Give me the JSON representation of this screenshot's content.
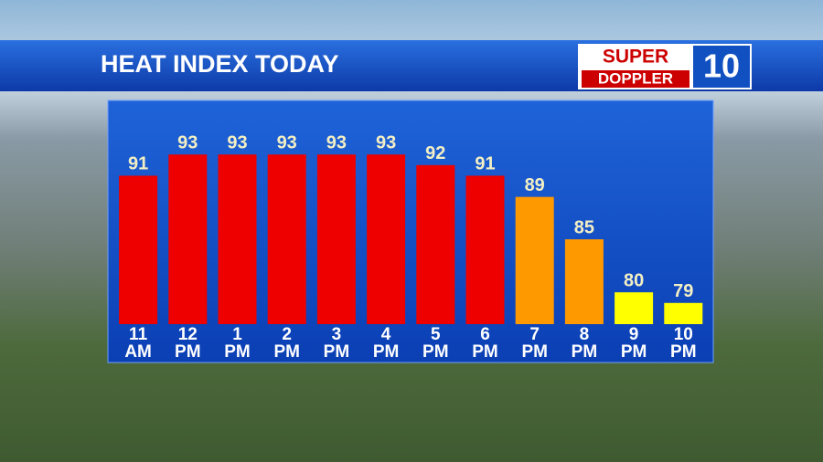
{
  "chart_data": {
    "type": "bar",
    "title": "HEAT INDEX TODAY",
    "logo": {
      "line1": "SUPER",
      "line2": "DOPPLER",
      "number": "10"
    },
    "categories": [
      "11 AM",
      "12 PM",
      "1 PM",
      "2 PM",
      "3 PM",
      "4 PM",
      "5 PM",
      "6 PM",
      "7 PM",
      "8 PM",
      "9 PM",
      "10 PM"
    ],
    "values": [
      91,
      93,
      93,
      93,
      93,
      93,
      92,
      91,
      89,
      85,
      80,
      79
    ],
    "colors": [
      "#ee0000",
      "#ee0000",
      "#ee0000",
      "#ee0000",
      "#ee0000",
      "#ee0000",
      "#ee0000",
      "#ee0000",
      "#ff9900",
      "#ff9900",
      "#ffff00",
      "#ffff00"
    ],
    "ylim": [
      77,
      95
    ]
  }
}
